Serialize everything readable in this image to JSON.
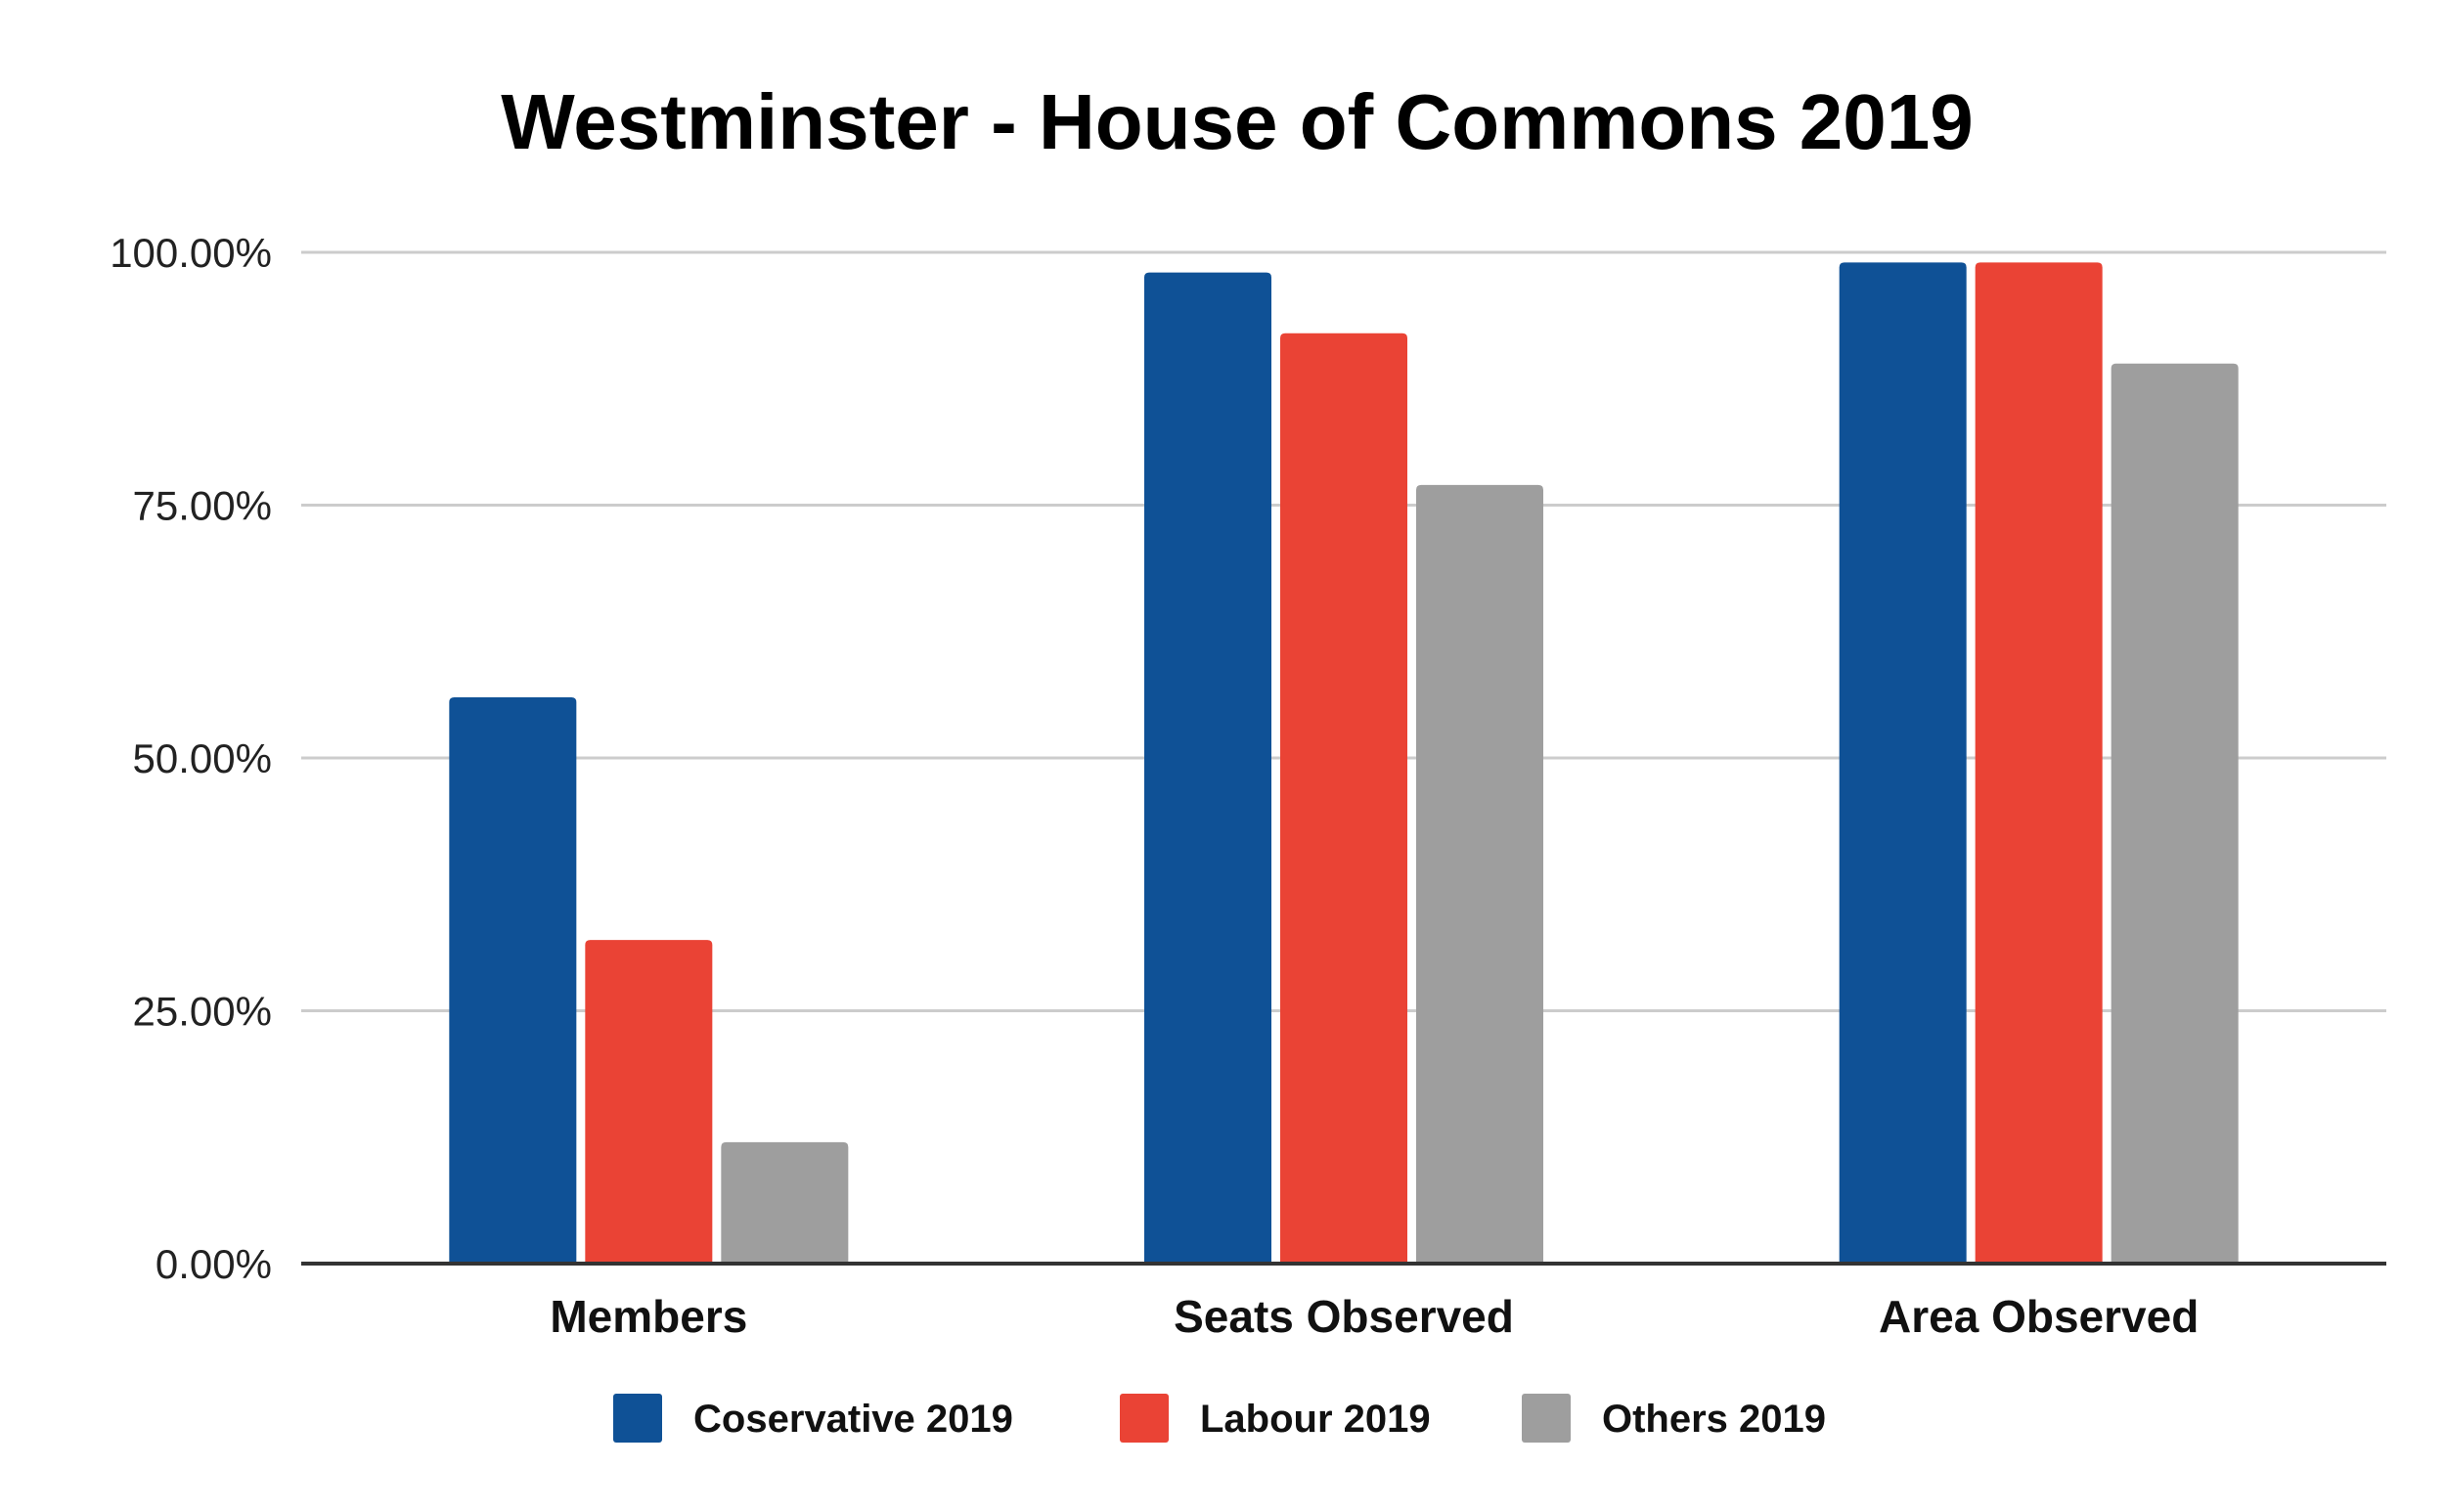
{
  "chart_data": {
    "type": "bar",
    "title": "Westminster - House of Commons 2019",
    "categories": [
      "Members",
      "Seats Observed",
      "Area Observed"
    ],
    "series": [
      {
        "name": "Coservative 2019",
        "color": "#0f5196",
        "values": [
          56,
          98,
          99
        ]
      },
      {
        "name": "Labour 2019",
        "color": "#ea4335",
        "values": [
          32,
          92,
          99
        ]
      },
      {
        "name": "Others 2019",
        "color": "#9e9e9e",
        "values": [
          12,
          77,
          89
        ]
      }
    ],
    "ylim": [
      0,
      100
    ],
    "yticks": [
      {
        "value": 0,
        "label": "0.00%"
      },
      {
        "value": 25,
        "label": "25.00%"
      },
      {
        "value": 50,
        "label": "50.00%"
      },
      {
        "value": 75,
        "label": "75.00%"
      },
      {
        "value": 100,
        "label": "100.00%"
      }
    ],
    "xlabel": "",
    "ylabel": "",
    "grid": true,
    "legend": "bottom"
  }
}
